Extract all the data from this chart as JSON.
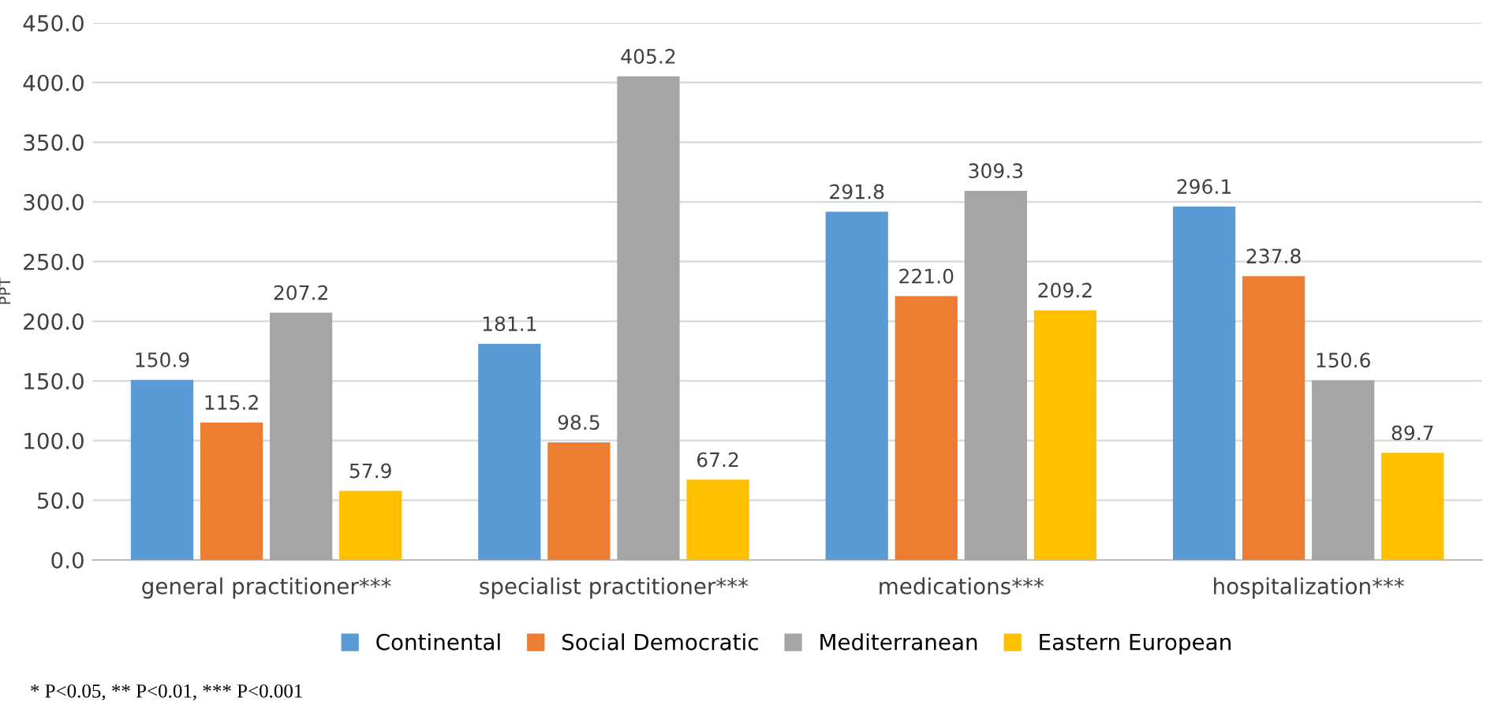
{
  "chart_data": {
    "type": "bar",
    "ylabel": "PPT",
    "categories": [
      "general practitioner***",
      "specialist practitioner***",
      "medications***",
      "hospitalization***"
    ],
    "series": [
      {
        "name": "Continental",
        "color": "#5b9bd5",
        "values": [
          150.9,
          181.1,
          291.8,
          296.1
        ],
        "value_labels": [
          "150.9",
          "181.1",
          "291.8",
          "296.1"
        ]
      },
      {
        "name": "Social Democratic",
        "color": "#ed7d31",
        "values": [
          115.2,
          98.5,
          221.0,
          237.8
        ],
        "value_labels": [
          "115.2",
          "98.5",
          "221.0",
          "237.8"
        ]
      },
      {
        "name": "Mediterranean",
        "color": "#a5a5a5",
        "values": [
          207.2,
          405.2,
          309.3,
          150.6
        ],
        "value_labels": [
          "207.2",
          "405.2",
          "309.3",
          "150.6"
        ]
      },
      {
        "name": "Eastern European",
        "color": "#ffc000",
        "values": [
          57.9,
          67.2,
          209.2,
          89.7
        ],
        "value_labels": [
          "57.9",
          "67.2",
          "209.2",
          "89.7"
        ]
      }
    ],
    "ylim": [
      0,
      450
    ],
    "yticks": [
      {
        "value": 0,
        "label": "0.0"
      },
      {
        "value": 50,
        "label": "50.0"
      },
      {
        "value": 100,
        "label": "100.0"
      },
      {
        "value": 150,
        "label": "150.0"
      },
      {
        "value": 200,
        "label": "200.0"
      },
      {
        "value": 250,
        "label": "250.0"
      },
      {
        "value": 300,
        "label": "300.0"
      },
      {
        "value": 350,
        "label": "350.0"
      },
      {
        "value": 400,
        "label": "400.0"
      },
      {
        "value": 450,
        "label": "450.0"
      }
    ],
    "grid": "y",
    "legend": "bottom",
    "annotations": [
      "* P<0.05, ** P<0.01, *** P<0.001"
    ]
  }
}
